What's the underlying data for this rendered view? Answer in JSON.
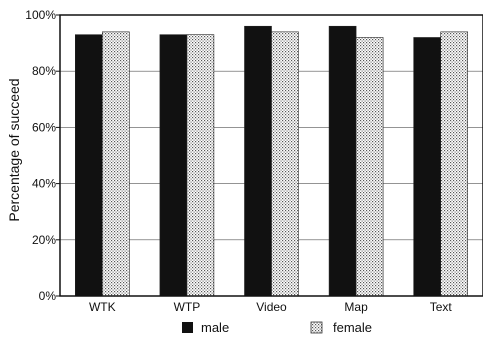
{
  "chart_data": {
    "type": "bar",
    "title": "",
    "xlabel": "",
    "ylabel": "Percentage of succeed",
    "categories": [
      "WTK",
      "WTP",
      "Video",
      "Map",
      "Text"
    ],
    "series": [
      {
        "name": "male",
        "values": [
          93,
          93,
          96,
          96,
          92
        ],
        "color": "#111111",
        "pattern": "solid"
      },
      {
        "name": "female",
        "values": [
          94,
          93,
          94,
          92,
          94
        ],
        "color": "#bbbbbb",
        "pattern": "dotted"
      }
    ],
    "ylim": [
      0,
      100
    ],
    "yticks": [
      "0%",
      "20%",
      "40%",
      "60%",
      "80%",
      "100%"
    ],
    "ytick_values": [
      0,
      20,
      40,
      60,
      80,
      100
    ],
    "grid": true,
    "legend": "bottom"
  }
}
